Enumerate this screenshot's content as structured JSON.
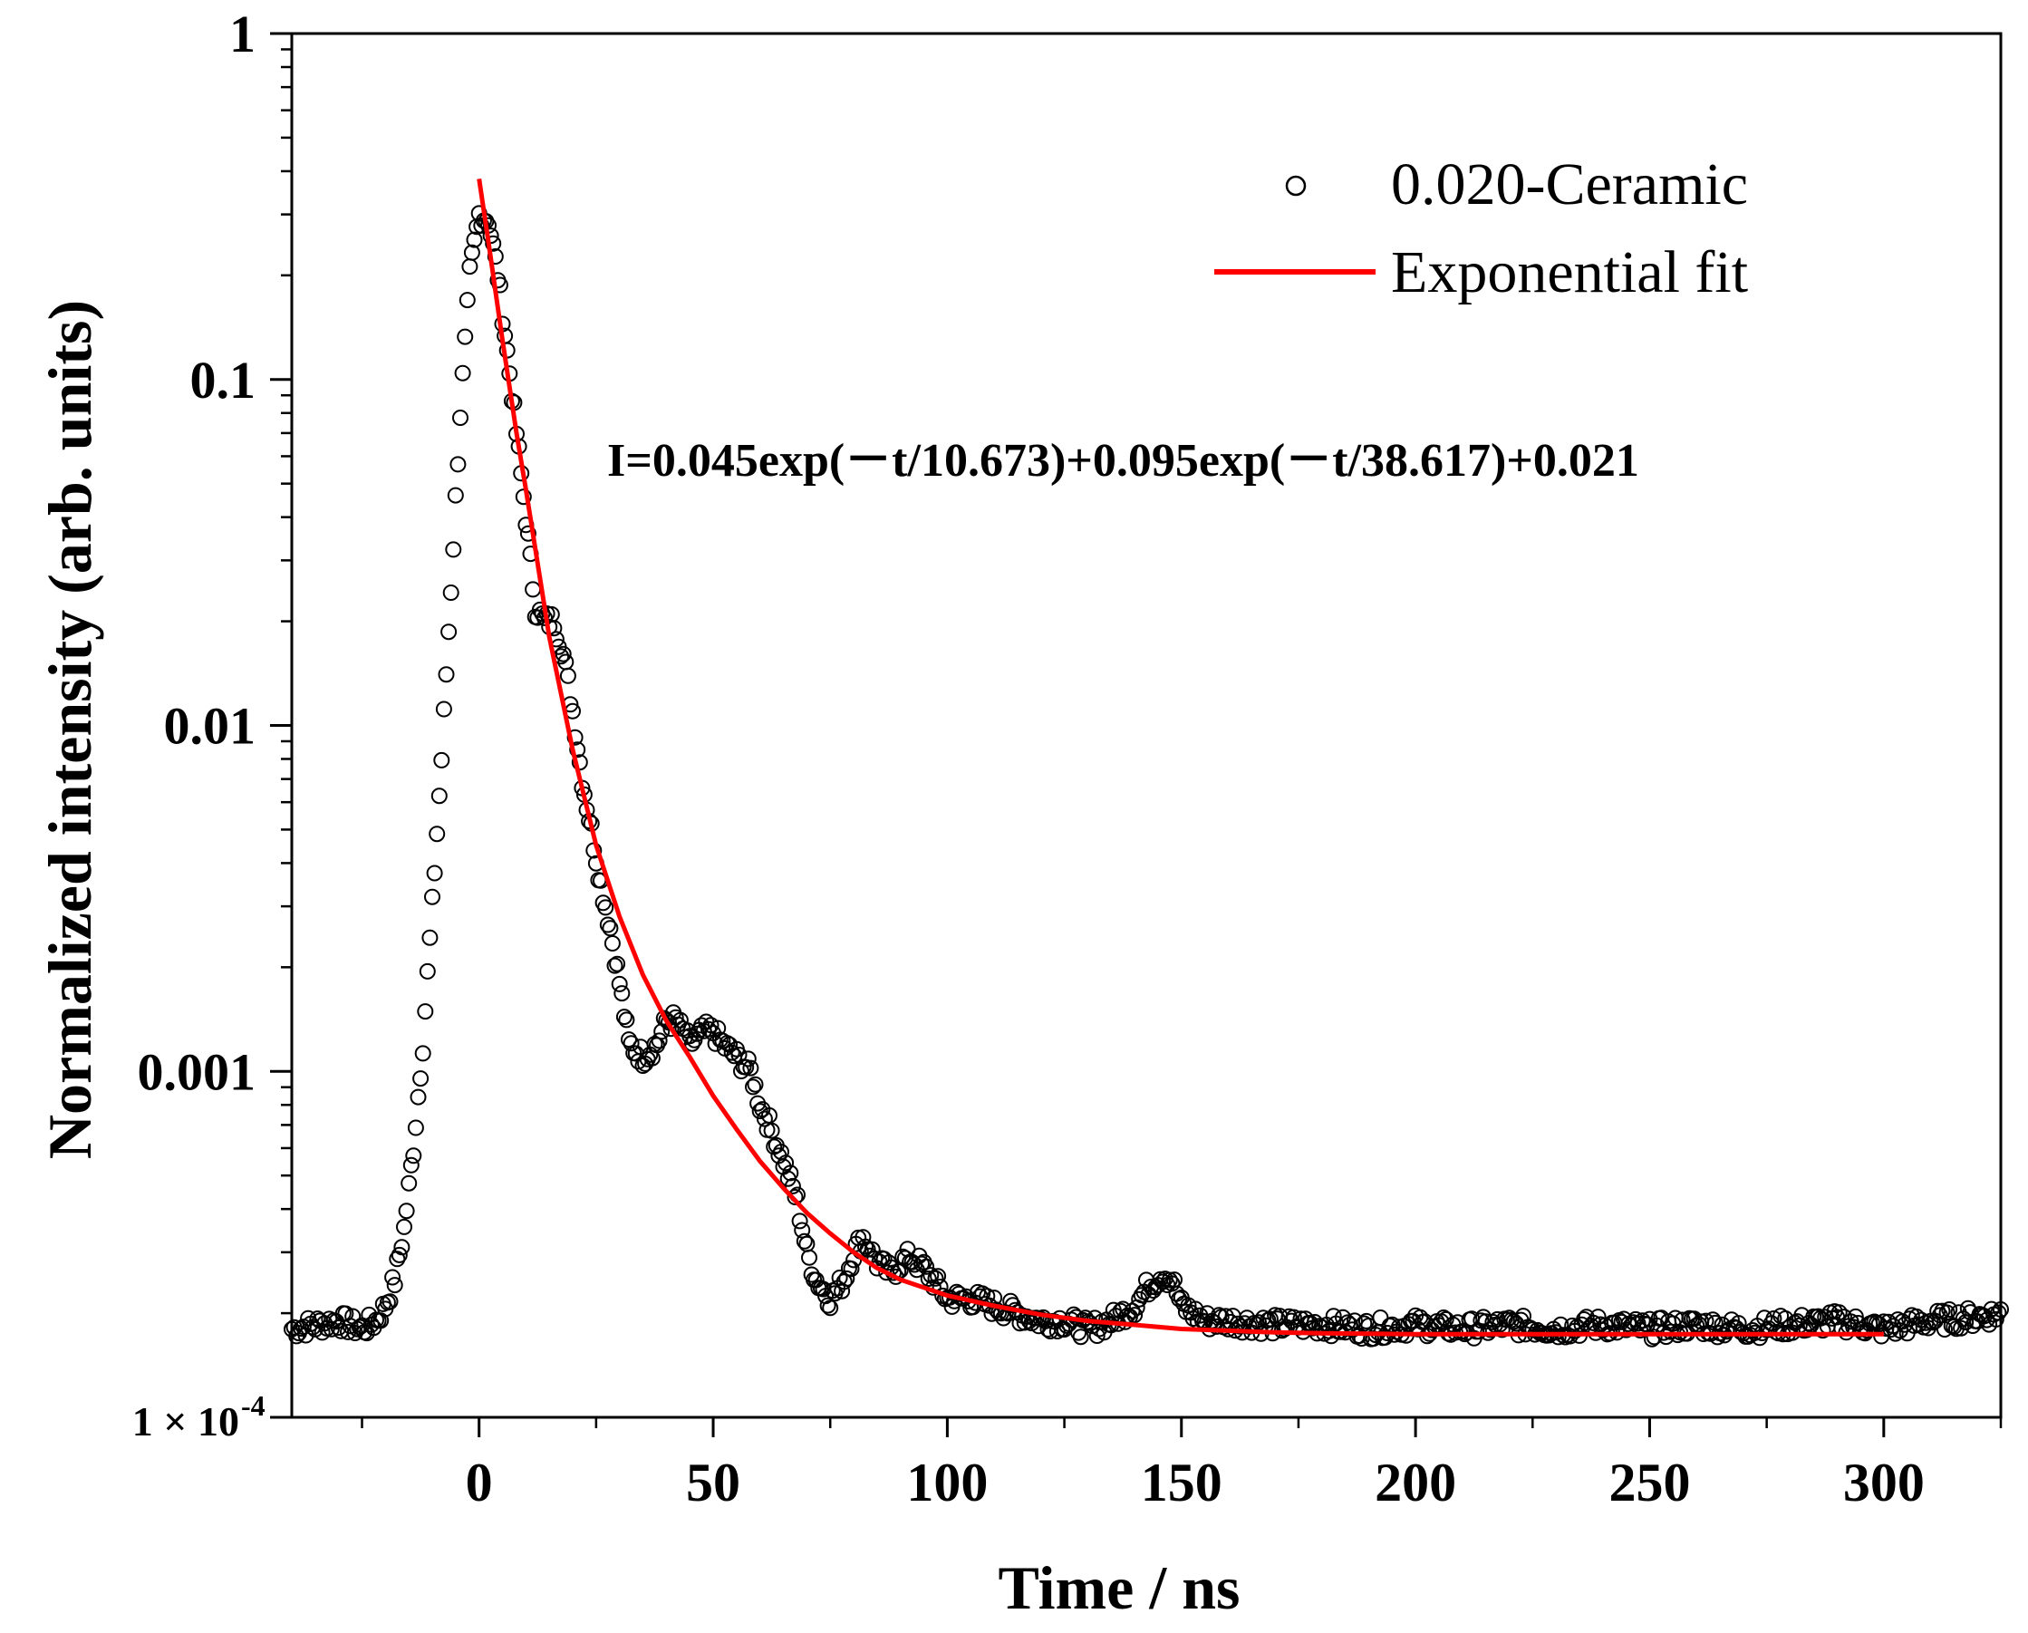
{
  "chart_data": {
    "type": "scatter",
    "title": "",
    "xlabel": "Time / ns",
    "ylabel": "Normalized intensity (arb. units)",
    "xlim": [
      -40,
      325
    ],
    "ylim": [
      0.0001,
      1
    ],
    "yscale": "log",
    "grid": false,
    "legend_position": "top-right",
    "x_ticks": [
      0,
      50,
      100,
      150,
      200,
      250,
      300
    ],
    "x_tick_labels": [
      "0",
      "50",
      "100",
      "150",
      "200",
      "250",
      "300"
    ],
    "y_ticks": [
      1,
      0.1,
      0.01,
      0.001,
      0.0001
    ],
    "y_tick_labels": [
      "1",
      "0.1",
      "0.01",
      "0.001",
      "1 × 10"
    ],
    "y_tick_superscript": "-4",
    "annotation": "I=0.045exp(－t/10.673)+0.095exp(－t/38.617)+0.021",
    "series": [
      {
        "name": "0.020-Ceramic",
        "style": "open-circle",
        "color": "#000000",
        "x": [
          -40,
          -35,
          -30,
          -25,
          -22,
          -20,
          -18,
          -16,
          -14,
          -12,
          -10,
          -8,
          -6,
          -4,
          -2,
          0,
          2,
          4,
          6,
          8,
          10,
          12,
          14,
          16,
          18,
          20,
          22,
          24,
          26,
          28,
          30,
          32,
          35,
          38,
          40,
          42,
          45,
          48,
          50,
          52,
          55,
          58,
          60,
          62,
          65,
          68,
          70,
          72,
          75,
          78,
          80,
          82,
          85,
          88,
          90,
          92,
          95,
          98,
          100,
          105,
          110,
          115,
          120,
          125,
          130,
          135,
          140,
          143,
          146,
          148,
          150,
          155,
          160,
          170,
          180,
          190,
          200,
          210,
          220,
          230,
          240,
          250,
          260,
          270,
          280,
          290,
          300,
          310,
          320,
          325
        ],
        "y": [
          0.00018,
          0.000185,
          0.00019,
          0.00018,
          0.00019,
          0.00021,
          0.00025,
          0.00035,
          0.0006,
          0.0012,
          0.003,
          0.008,
          0.025,
          0.08,
          0.2,
          0.3,
          0.29,
          0.2,
          0.12,
          0.07,
          0.04,
          0.022,
          0.02,
          0.02,
          0.016,
          0.011,
          0.007,
          0.005,
          0.0035,
          0.0026,
          0.0018,
          0.0012,
          0.0011,
          0.0012,
          0.0014,
          0.0014,
          0.0012,
          0.0013,
          0.0013,
          0.0012,
          0.0011,
          0.001,
          0.0008,
          0.0007,
          0.00055,
          0.00042,
          0.0003,
          0.00025,
          0.00022,
          0.00025,
          0.0003,
          0.00033,
          0.00028,
          0.00026,
          0.00028,
          0.00029,
          0.00027,
          0.00024,
          0.00022,
          0.00022,
          0.00021,
          0.0002,
          0.00019,
          0.00019,
          0.00018,
          0.00019,
          0.00021,
          0.00024,
          0.00026,
          0.00025,
          0.00021,
          0.00019,
          0.00019,
          0.000185,
          0.000185,
          0.00018,
          0.000185,
          0.00018,
          0.000185,
          0.00018,
          0.000185,
          0.00018,
          0.000185,
          0.00018,
          0.000185,
          0.00019,
          0.00018,
          0.00019,
          0.000195,
          0.0002
        ]
      },
      {
        "name": "Exponential fit",
        "style": "line",
        "color": "#ff0000",
        "x": [
          0,
          2,
          5,
          8,
          10,
          15,
          20,
          25,
          30,
          35,
          40,
          45,
          50,
          55,
          60,
          65,
          70,
          75,
          80,
          85,
          90,
          100,
          110,
          120,
          130,
          140,
          150,
          160,
          170,
          180,
          200,
          220,
          240,
          260,
          280,
          300
        ],
        "y": [
          0.38,
          0.25,
          0.13,
          0.07,
          0.048,
          0.018,
          0.0085,
          0.0045,
          0.0028,
          0.0019,
          0.0014,
          0.0011,
          0.00085,
          0.00068,
          0.00055,
          0.00046,
          0.00039,
          0.00034,
          0.0003,
          0.00027,
          0.00025,
          0.000225,
          0.00021,
          0.000198,
          0.00019,
          0.000185,
          0.00018,
          0.000178,
          0.000176,
          0.000175,
          0.000174,
          0.000174,
          0.000174,
          0.000174,
          0.000174,
          0.000174
        ]
      }
    ]
  }
}
